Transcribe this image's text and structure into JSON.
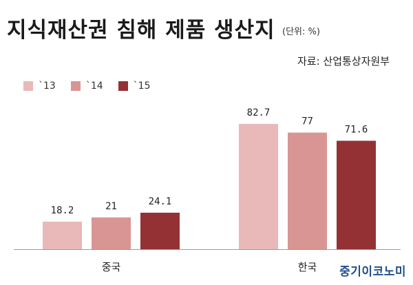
{
  "title": "지식재산권 침해 제품 생산지",
  "unit": "(단위: %)",
  "source": "자료: 산업통상자원부",
  "brand": "중기이코노미",
  "colors": {
    "s13": "#e8b9b8",
    "s14": "#d99594",
    "s15": "#943134",
    "axis": "#999999"
  },
  "chart_data": {
    "type": "bar",
    "title": "지식재산권 침해 제품 생산지",
    "xlabel": "",
    "ylabel": "",
    "ylim": [
      0,
      100
    ],
    "grid": false,
    "legend_position": "top-left",
    "categories": [
      "중국",
      "한국"
    ],
    "series": [
      {
        "name": "`13",
        "values": [
          18.2,
          82.7
        ],
        "labels": [
          "18.2",
          "82.7"
        ]
      },
      {
        "name": "`14",
        "values": [
          21,
          77
        ],
        "labels": [
          "21",
          "77"
        ]
      },
      {
        "name": "`15",
        "values": [
          24.1,
          71.6
        ],
        "labels": [
          "24.1",
          "71.6"
        ]
      }
    ]
  }
}
